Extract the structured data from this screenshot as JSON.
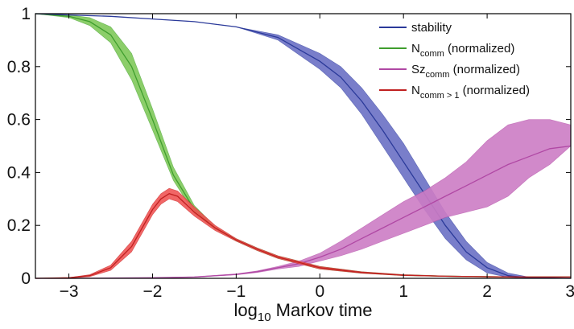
{
  "chart_data": {
    "type": "line",
    "title": "",
    "xlabel": {
      "prefix": "log",
      "sub": "10",
      "suffix": " Markov time"
    },
    "ylabel": "",
    "xlim": [
      -3.4,
      3
    ],
    "ylim": [
      0,
      1
    ],
    "x_ticks": [
      -3,
      -2,
      -1,
      0,
      1,
      2,
      3
    ],
    "x_tick_labels": [
      "−3",
      "−2",
      "−1",
      "0",
      "1",
      "2",
      "3"
    ],
    "y_ticks": [
      0,
      0.2,
      0.4,
      0.6,
      0.8,
      1
    ],
    "y_tick_labels": [
      "0",
      "0.2",
      "0.4",
      "0.6",
      "0.8",
      "1"
    ],
    "grid": false,
    "legend_position": "top-right",
    "series": [
      {
        "key": "stability",
        "legend": {
          "main": "stability",
          "sub": "",
          "suffix": ""
        },
        "line_color": "#2b3a9a",
        "band_color": "#6a70c4",
        "x": [
          -3.4,
          -3,
          -2.5,
          -2,
          -1.5,
          -1,
          -0.5,
          0,
          0.25,
          0.5,
          0.75,
          1,
          1.25,
          1.5,
          1.75,
          2,
          2.25,
          2.5,
          3
        ],
        "mean": [
          1,
          0.995,
          0.99,
          0.98,
          0.97,
          0.95,
          0.91,
          0.82,
          0.76,
          0.67,
          0.56,
          0.44,
          0.32,
          0.2,
          0.1,
          0.04,
          0.01,
          0.002,
          0
        ],
        "upper": [
          1,
          0.995,
          0.99,
          0.98,
          0.97,
          0.95,
          0.92,
          0.85,
          0.8,
          0.72,
          0.62,
          0.51,
          0.38,
          0.25,
          0.14,
          0.06,
          0.02,
          0.005,
          0
        ],
        "lower": [
          1,
          0.995,
          0.99,
          0.98,
          0.97,
          0.95,
          0.9,
          0.79,
          0.72,
          0.62,
          0.5,
          0.38,
          0.26,
          0.15,
          0.07,
          0.02,
          0.004,
          0,
          0
        ]
      },
      {
        "key": "n_comm",
        "legend": {
          "main": "N",
          "sub": "comm",
          "suffix": " (normalized)"
        },
        "line_color": "#3f9e2e",
        "band_color": "#7fc95a",
        "x": [
          -3.4,
          -3,
          -2.75,
          -2.5,
          -2.25,
          -2,
          -1.75,
          -1.5,
          -1.25,
          -1,
          -0.75,
          -0.5,
          -0.25,
          0,
          0.5,
          1,
          1.5,
          2,
          2.5,
          3
        ],
        "mean": [
          1,
          0.99,
          0.97,
          0.92,
          0.8,
          0.6,
          0.39,
          0.26,
          0.19,
          0.145,
          0.11,
          0.08,
          0.06,
          0.04,
          0.022,
          0.012,
          0.008,
          0.006,
          0.005,
          0.005
        ],
        "upper": [
          1,
          0.995,
          0.985,
          0.95,
          0.85,
          0.64,
          0.42,
          0.275,
          0.195,
          0.15,
          0.115,
          0.085,
          0.065,
          0.045,
          0.025,
          0.014,
          0.009,
          0.007,
          0.006,
          0.006
        ],
        "lower": [
          1,
          0.985,
          0.955,
          0.89,
          0.75,
          0.56,
          0.37,
          0.245,
          0.185,
          0.14,
          0.105,
          0.075,
          0.055,
          0.035,
          0.019,
          0.01,
          0.007,
          0.005,
          0.004,
          0.004
        ]
      },
      {
        "key": "sz_comm",
        "legend": {
          "main": "Sz",
          "sub": "comm",
          "suffix": " (normalized)"
        },
        "line_color": "#b048a4",
        "band_color": "#cc7cc4",
        "x": [
          -3.4,
          -3,
          -2.5,
          -2,
          -1.5,
          -1,
          -0.75,
          -0.5,
          -0.25,
          0,
          0.25,
          0.5,
          0.75,
          1,
          1.25,
          1.5,
          1.75,
          2,
          2.25,
          2.5,
          2.75,
          3
        ],
        "mean": [
          0,
          0,
          0.001,
          0.002,
          0.005,
          0.015,
          0.025,
          0.04,
          0.055,
          0.08,
          0.11,
          0.15,
          0.19,
          0.23,
          0.27,
          0.31,
          0.35,
          0.39,
          0.43,
          0.46,
          0.49,
          0.5
        ],
        "upper": [
          0,
          0,
          0.001,
          0.002,
          0.006,
          0.017,
          0.028,
          0.045,
          0.065,
          0.095,
          0.14,
          0.19,
          0.24,
          0.29,
          0.33,
          0.38,
          0.44,
          0.52,
          0.58,
          0.6,
          0.6,
          0.58
        ],
        "lower": [
          0,
          0,
          0.001,
          0.002,
          0.004,
          0.013,
          0.022,
          0.035,
          0.045,
          0.065,
          0.085,
          0.11,
          0.14,
          0.17,
          0.2,
          0.23,
          0.25,
          0.27,
          0.31,
          0.38,
          0.43,
          0.5
        ]
      },
      {
        "key": "n_comm_gt1",
        "legend": {
          "main": "N",
          "sub": "comm > 1",
          "suffix": " (normalized)"
        },
        "line_color": "#c02020",
        "band_color": "#f05555",
        "x": [
          -3.4,
          -3,
          -2.75,
          -2.5,
          -2.25,
          -2,
          -1.9,
          -1.8,
          -1.7,
          -1.5,
          -1.25,
          -1,
          -0.75,
          -0.5,
          -0.25,
          0,
          0.5,
          1,
          1.5,
          2,
          2.5,
          3
        ],
        "mean": [
          0,
          0.002,
          0.01,
          0.04,
          0.12,
          0.26,
          0.3,
          0.32,
          0.31,
          0.25,
          0.19,
          0.145,
          0.11,
          0.08,
          0.06,
          0.04,
          0.022,
          0.012,
          0.008,
          0.006,
          0.005,
          0.005
        ],
        "upper": [
          0,
          0.003,
          0.014,
          0.05,
          0.14,
          0.28,
          0.32,
          0.34,
          0.33,
          0.27,
          0.2,
          0.15,
          0.115,
          0.085,
          0.065,
          0.045,
          0.025,
          0.014,
          0.009,
          0.007,
          0.006,
          0.006
        ],
        "lower": [
          0,
          0.001,
          0.006,
          0.03,
          0.1,
          0.24,
          0.28,
          0.3,
          0.29,
          0.235,
          0.18,
          0.14,
          0.105,
          0.075,
          0.055,
          0.035,
          0.019,
          0.01,
          0.007,
          0.005,
          0.004,
          0.004
        ]
      }
    ],
    "draw_order": [
      "n_comm",
      "stability",
      "sz_comm",
      "n_comm_gt1"
    ]
  }
}
